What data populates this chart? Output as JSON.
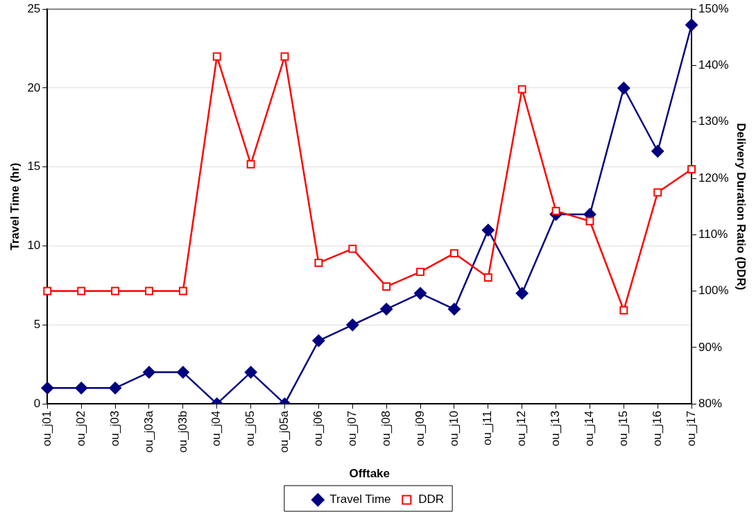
{
  "chart_data": {
    "type": "line",
    "xlabel": "Offtake",
    "ylabel": "Travel Time (hr)",
    "y2label": "Delivery Duration Ratio (DDR)",
    "categories": [
      "ou_j01",
      "ou_j02",
      "ou_j03",
      "ou_j03a",
      "ou_j03b",
      "ou_j04",
      "ou_j05",
      "ou_j05a",
      "ou_j06",
      "ou_j07",
      "ou_j08",
      "ou_j09",
      "ou_j10",
      "ou_j11",
      "ou_j12",
      "ou_j13",
      "ou_j14",
      "ou_j15",
      "ou_j16",
      "ou_j17"
    ],
    "series": [
      {
        "name": "Travel Time",
        "color": "#000080",
        "marker": "diamond",
        "values": [
          1,
          1,
          1,
          2,
          2,
          0,
          2,
          0,
          4,
          5,
          6,
          7,
          6,
          11,
          7,
          12,
          12,
          20,
          16,
          24
        ]
      },
      {
        "name": "DDR",
        "color": "#ff0000",
        "marker": "square",
        "axis": "y2",
        "values": [
          100,
          100,
          100,
          100,
          100,
          141.6,
          122.5,
          141.6,
          105,
          107.5,
          100.8,
          103.4,
          106.7,
          102.4,
          135.8,
          114.2,
          112.4,
          96.6,
          117.5,
          121.6
        ]
      }
    ],
    "ylim": [
      0,
      25
    ],
    "yticks": [
      0,
      5,
      10,
      15,
      20,
      25
    ],
    "y2lim": [
      80,
      150
    ],
    "y2ticks": [
      {
        "value": 80,
        "label": "80%"
      },
      {
        "value": 90,
        "label": "90%"
      },
      {
        "value": 100,
        "label": "100%"
      },
      {
        "value": 110,
        "label": "110%"
      },
      {
        "value": 120,
        "label": "120%"
      },
      {
        "value": 130,
        "label": "130%"
      },
      {
        "value": 140,
        "label": "140%"
      },
      {
        "value": 150,
        "label": "150%"
      }
    ],
    "grid": "y",
    "legend": "bottom",
    "line_style": "solid"
  }
}
